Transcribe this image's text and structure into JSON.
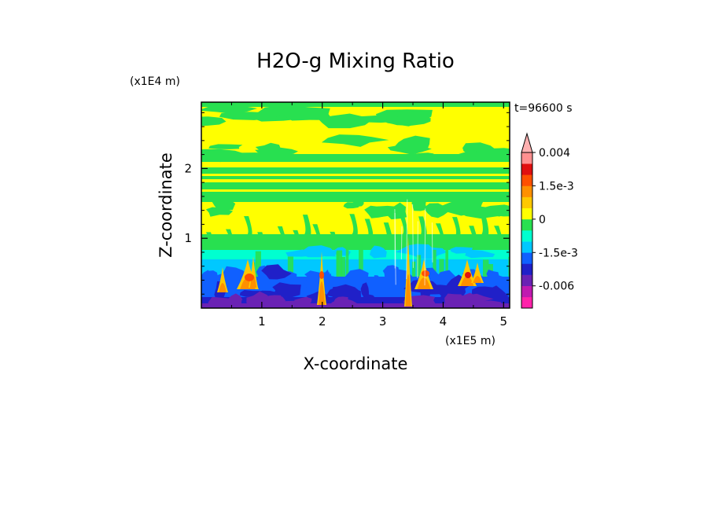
{
  "chart_data": {
    "type": "heatmap",
    "title": "H2O-g Mixing Ratio",
    "xlabel": "X-coordinate",
    "ylabel": "Z-coordinate",
    "x_unit": "(x1E5 m)",
    "y_unit": "(x1E4 m)",
    "time_label": "t=96600 s",
    "xlim": [
      0,
      5.1
    ],
    "ylim": [
      0,
      2.95
    ],
    "x_ticks": [
      1,
      2,
      3,
      4,
      5
    ],
    "y_ticks": [
      1,
      2
    ],
    "x_tick_labels": [
      "1",
      "2",
      "3",
      "4",
      "5"
    ],
    "y_tick_labels": [
      "1",
      "2"
    ],
    "colorbar": {
      "levels": [
        -0.0075,
        -0.006,
        -0.0045,
        -0.003,
        -0.0015,
        -0.001,
        -0.0005,
        0,
        0.0005,
        0.001,
        0.0015,
        0.002,
        0.0025,
        0.004
      ],
      "colors": [
        "#ff22aa",
        "#c01ab0",
        "#6a22b4",
        "#2020c8",
        "#1060ff",
        "#00c8ff",
        "#00ffd0",
        "#28e050",
        "#ffff00",
        "#ffc800",
        "#ff9000",
        "#ff5000",
        "#e01010",
        "#ff9090",
        "#ffb0b0"
      ],
      "labels": [
        "0.004",
        "1.5e-3",
        "0",
        "-1.5e-3",
        "-0.006"
      ],
      "label_values": [
        0.004,
        0.0015,
        0,
        -0.0015,
        -0.006
      ],
      "extend": "max"
    },
    "legend": "right"
  }
}
